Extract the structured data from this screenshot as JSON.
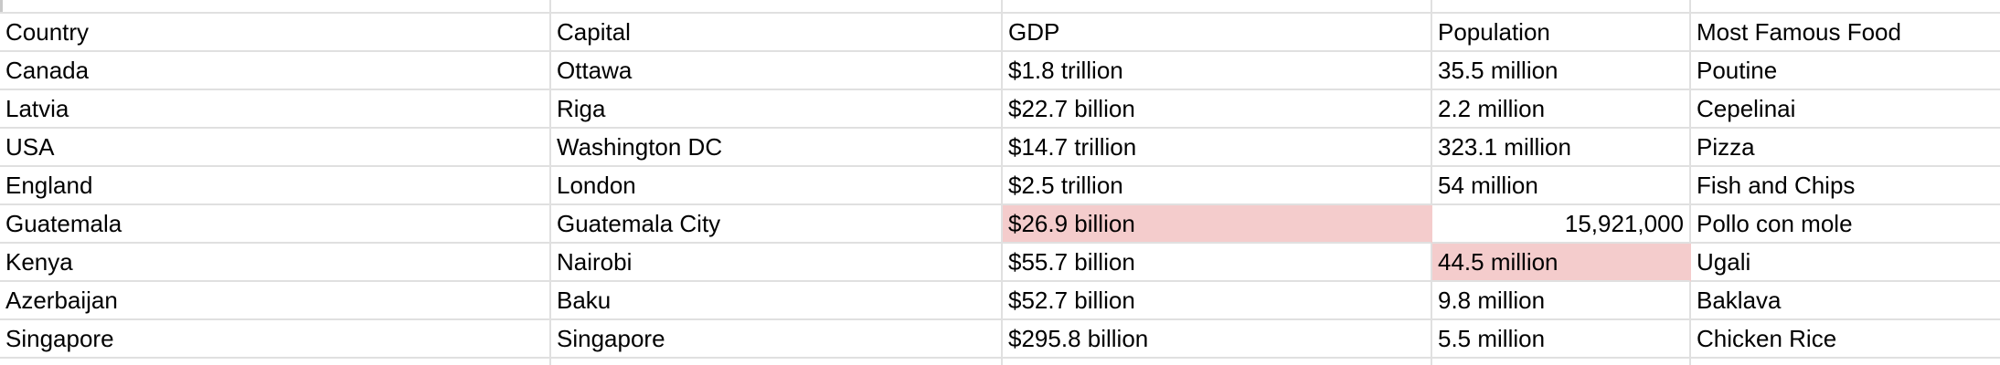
{
  "colors": {
    "background": "#ffffff",
    "text": "#000000",
    "gridline": "#e0e0e0",
    "highlight_fill": "#f4cccc",
    "row_header_border": "#c9c9c9"
  },
  "table": {
    "header": [
      "Country",
      "Capital",
      "GDP",
      "Population",
      "Most Famous Food"
    ],
    "rows": [
      {
        "cells": [
          "Canada",
          "Ottawa",
          "$1.8 trillion",
          "35.5 million",
          "Poutine"
        ]
      },
      {
        "cells": [
          "Latvia",
          "Riga",
          "$22.7 billion",
          "2.2 million",
          "Cepelinai"
        ]
      },
      {
        "cells": [
          "USA",
          "Washington DC",
          "$14.7 trillion",
          "323.1 million",
          "Pizza"
        ]
      },
      {
        "cells": [
          "England",
          "London",
          "$2.5 trillion",
          "54 million",
          "Fish and Chips"
        ]
      },
      {
        "cells": [
          "Guatemala",
          "Guatemala City",
          "$26.9 billion",
          "15,921,000",
          "Pollo con mole"
        ]
      },
      {
        "cells": [
          "Kenya",
          "Nairobi",
          "$55.7 billion",
          "44.5 million",
          "Ugali"
        ]
      },
      {
        "cells": [
          "Azerbaijan",
          "Baku",
          "$52.7 billion",
          "9.8 million",
          "Baklava"
        ]
      },
      {
        "cells": [
          "Singapore",
          "Singapore",
          "$295.8 billion",
          "5.5 million",
          "Chicken Rice"
        ]
      }
    ],
    "highlighted_cells": [
      {
        "row": "Guatemala",
        "column": "GDP",
        "value": "$26.9 billion"
      },
      {
        "row": "Kenya",
        "column": "Population",
        "value": "44.5 million"
      }
    ],
    "right_aligned_numeric_cell": {
      "row": "Guatemala",
      "column": "Population",
      "value": "15,921,000"
    }
  }
}
